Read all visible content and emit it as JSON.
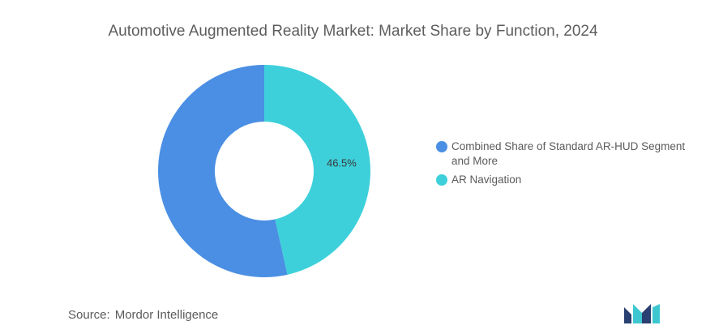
{
  "chart_data": {
    "type": "pie",
    "title": "Automotive Augmented Reality Market: Market Share by Function, 2024",
    "slices": [
      {
        "name": "Combined Share of Standard AR-HUD Segment and More",
        "value": 53.5,
        "label": "",
        "color": "#4a8fe3"
      },
      {
        "name": "AR Navigation",
        "value": 46.5,
        "label": "46.5%",
        "color": "#3dd0db"
      }
    ],
    "legend_position": "right"
  },
  "source": {
    "label": "Source:",
    "text": "Mordor Intelligence"
  },
  "logo": {
    "icon": "mordor-intelligence-logo-icon",
    "colors": [
      "#2a3f72",
      "#3ec7d0"
    ]
  }
}
